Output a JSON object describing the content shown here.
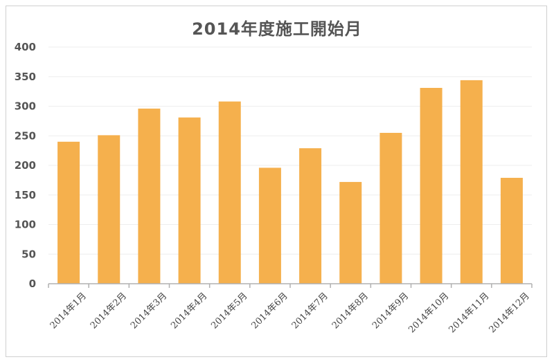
{
  "chart_data": {
    "type": "bar",
    "title": "2014年度施工開始月",
    "categories": [
      "2014年1月",
      "2014年2月",
      "2014年3月",
      "2014年4月",
      "2014年5月",
      "2014年6月",
      "2014年7月",
      "2014年8月",
      "2014年9月",
      "2014年10月",
      "2014年11月",
      "2014年12月"
    ],
    "values": [
      240,
      251,
      296,
      281,
      308,
      196,
      229,
      172,
      255,
      331,
      344,
      179
    ],
    "ylim": [
      0,
      400
    ],
    "yticks": [
      0,
      50,
      100,
      150,
      200,
      250,
      300,
      350,
      400
    ],
    "grid": true,
    "legend": "none",
    "bar_color": "#f5b04d"
  }
}
